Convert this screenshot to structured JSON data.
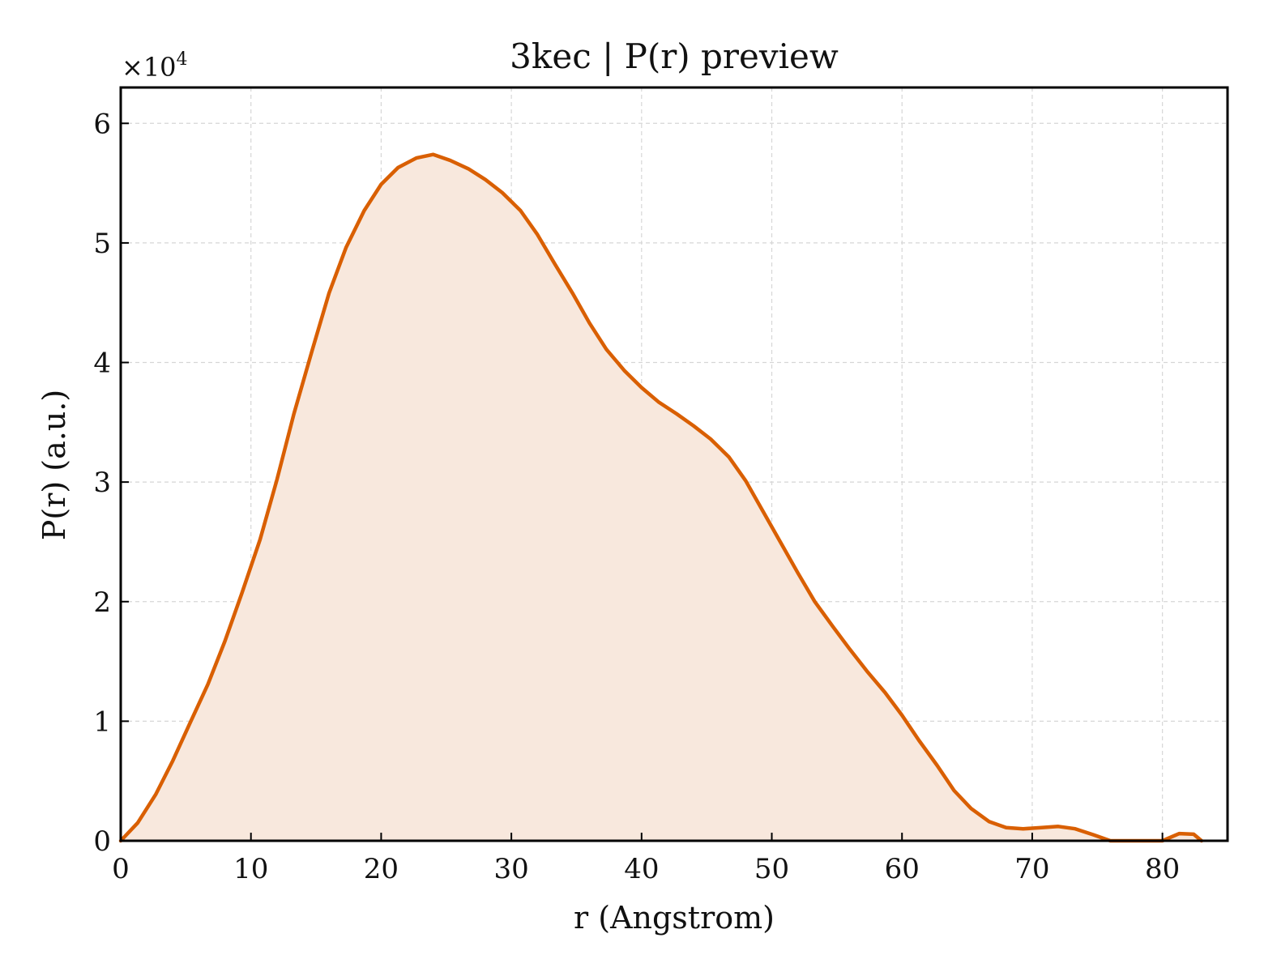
{
  "chart_data": {
    "type": "area",
    "title": "3kec | P(r) preview",
    "xlabel": "r (Angstrom)",
    "ylabel": "P(r) (a.u.)",
    "y_multiplier": "×10",
    "y_multiplier_exp": "4",
    "xlim": [
      0,
      85
    ],
    "ylim": [
      0,
      6.3
    ],
    "x_ticks": [
      0,
      10,
      20,
      30,
      40,
      50,
      60,
      70,
      80
    ],
    "y_ticks": [
      0,
      1,
      2,
      3,
      4,
      5,
      6
    ],
    "grid": true,
    "colors": {
      "line": "#d95f02",
      "fill": "#f8e8dd"
    },
    "series": [
      {
        "x": [
          0,
          1.3,
          2.7,
          4.0,
          5.3,
          6.7,
          8.0,
          9.3,
          10.7,
          12.0,
          13.3,
          14.7,
          16.0,
          17.3,
          18.7,
          20.0,
          21.3,
          22.7,
          24.0,
          25.3,
          26.7,
          28.0,
          29.3,
          30.7,
          32.0,
          33.3,
          34.7,
          36.0,
          37.3,
          38.7,
          40.0,
          41.3,
          42.7,
          44.0,
          45.3,
          46.7,
          48.0,
          49.3,
          50.7,
          52.0,
          53.3,
          54.7,
          56.0,
          57.3,
          58.7,
          60.0,
          61.3,
          62.7,
          64.0,
          65.3,
          66.7,
          68.0,
          69.3,
          70.7,
          72.0,
          73.3,
          74.7,
          76.0,
          77.3,
          78.7,
          80.0,
          81.3,
          82.4,
          83.0
        ],
        "y": [
          0.0,
          0.15,
          0.39,
          0.67,
          0.98,
          1.31,
          1.67,
          2.07,
          2.52,
          3.02,
          3.57,
          4.1,
          4.58,
          4.96,
          5.27,
          5.49,
          5.63,
          5.71,
          5.74,
          5.69,
          5.62,
          5.53,
          5.42,
          5.27,
          5.07,
          4.83,
          4.58,
          4.33,
          4.11,
          3.93,
          3.79,
          3.67,
          3.57,
          3.47,
          3.36,
          3.21,
          3.01,
          2.76,
          2.49,
          2.24,
          2.0,
          1.79,
          1.6,
          1.42,
          1.24,
          1.05,
          0.84,
          0.63,
          0.42,
          0.27,
          0.16,
          0.11,
          0.1,
          0.11,
          0.12,
          0.1,
          0.05,
          0.0,
          0.0,
          0.0,
          0.0,
          0.06,
          0.055,
          0.0
        ]
      }
    ]
  }
}
